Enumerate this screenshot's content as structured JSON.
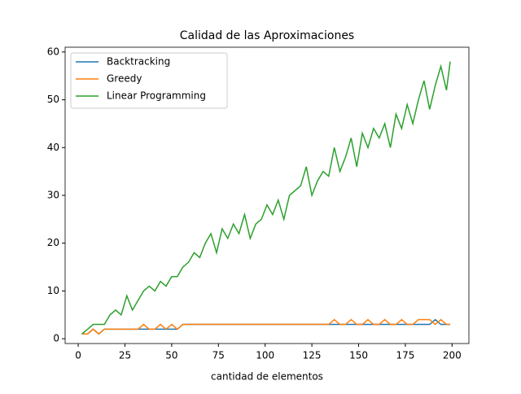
{
  "chart_data": {
    "type": "line",
    "title": "Calidad de las Aproximaciones",
    "x_label": "cantidad de elementos",
    "x": [
      2,
      5,
      8,
      11,
      14,
      17,
      20,
      23,
      26,
      29,
      32,
      35,
      38,
      41,
      44,
      47,
      50,
      53,
      56,
      59,
      62,
      65,
      68,
      71,
      74,
      77,
      80,
      83,
      86,
      89,
      92,
      95,
      98,
      101,
      104,
      107,
      110,
      113,
      116,
      119,
      122,
      125,
      128,
      131,
      134,
      137,
      140,
      143,
      146,
      149,
      152,
      155,
      158,
      161,
      164,
      167,
      170,
      173,
      176,
      179,
      182,
      185,
      188,
      191,
      194,
      197,
      199
    ],
    "series": [
      {
        "name": "Backtracking",
        "color": "#1f77b4",
        "values": [
          1,
          1,
          2,
          1,
          2,
          2,
          2,
          2,
          2,
          2,
          2,
          2,
          2,
          2,
          2,
          2,
          2,
          2,
          3,
          3,
          3,
          3,
          3,
          3,
          3,
          3,
          3,
          3,
          3,
          3,
          3,
          3,
          3,
          3,
          3,
          3,
          3,
          3,
          3,
          3,
          3,
          3,
          3,
          3,
          3,
          3,
          3,
          3,
          3,
          3,
          3,
          3,
          3,
          3,
          3,
          3,
          3,
          3,
          3,
          3,
          3,
          3,
          3,
          4,
          3,
          3,
          3
        ]
      },
      {
        "name": "Greedy",
        "color": "#ff7f0e",
        "values": [
          1,
          1,
          2,
          1,
          2,
          2,
          2,
          2,
          2,
          2,
          2,
          3,
          2,
          2,
          3,
          2,
          3,
          2,
          3,
          3,
          3,
          3,
          3,
          3,
          3,
          3,
          3,
          3,
          3,
          3,
          3,
          3,
          3,
          3,
          3,
          3,
          3,
          3,
          3,
          3,
          3,
          3,
          3,
          3,
          3,
          4,
          3,
          3,
          4,
          3,
          3,
          4,
          3,
          3,
          4,
          3,
          3,
          4,
          3,
          3,
          4,
          4,
          4,
          3,
          4,
          3,
          3
        ]
      },
      {
        "name": "Linear Programming",
        "color": "#2ca02c",
        "values": [
          1,
          2,
          3,
          3,
          3,
          5,
          6,
          5,
          9,
          6,
          8,
          10,
          11,
          10,
          12,
          11,
          13,
          13,
          15,
          16,
          18,
          17,
          20,
          22,
          18,
          23,
          21,
          24,
          22,
          26,
          21,
          24,
          25,
          28,
          26,
          29,
          25,
          30,
          31,
          32,
          36,
          30,
          33,
          35,
          34,
          40,
          35,
          38,
          42,
          36,
          43,
          40,
          44,
          42,
          45,
          40,
          47,
          44,
          49,
          45,
          50,
          54,
          48,
          53,
          57,
          52,
          58
        ]
      }
    ],
    "xlim": [
      -7,
      209
    ],
    "ylim": [
      -1,
      61
    ],
    "xticks": [
      0,
      25,
      50,
      75,
      100,
      125,
      150,
      175,
      200
    ],
    "yticks": [
      0,
      10,
      20,
      30,
      40,
      50,
      60
    ],
    "legend": "upper left"
  }
}
